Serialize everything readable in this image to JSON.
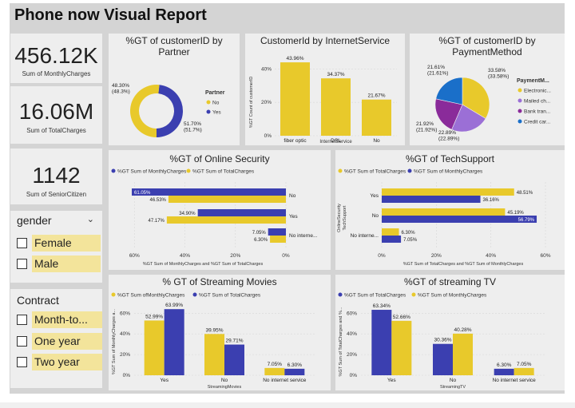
{
  "header": {
    "title": "Phone now Visual Report"
  },
  "colors": {
    "yellow": "#e8c92b",
    "blue": "#3b3fb0",
    "cyan": "#1a6fc9",
    "purple": "#8a2b9a",
    "lavender": "#9b6fd6"
  },
  "kpis": [
    {
      "value": "456.12K",
      "label": "Sum of MonthlyCharges"
    },
    {
      "value": "16.06M",
      "label": "Sum of TotalCharges"
    },
    {
      "value": "1142",
      "label": "Sum of SeniorCitizen"
    }
  ],
  "slicers": {
    "gender": {
      "title": "gender",
      "options": [
        "Female",
        "Male"
      ]
    },
    "contract": {
      "title": "Contract",
      "options": [
        "Month-to...",
        "One year",
        "Two year"
      ]
    }
  },
  "chart_data": [
    {
      "id": "partner",
      "type": "pie",
      "title": "%GT of customerID by Partner",
      "legend_title": "Partner",
      "legend": [
        "No",
        "Yes"
      ],
      "slices": [
        {
          "name": "No",
          "value": 51.7,
          "label": "51.70%\n(51.7%)",
          "color": "#e8c92b"
        },
        {
          "name": "Yes",
          "value": 48.3,
          "label": "48.30%\n(48.3%)",
          "color": "#3b3fb0"
        }
      ]
    },
    {
      "id": "internet",
      "type": "bar",
      "title": "CustomerId by InternetService",
      "categories": [
        "fiber optic",
        "DSL",
        "No"
      ],
      "values": [
        43.96,
        34.37,
        21.67
      ],
      "value_labels": [
        "43.96%",
        "34.37%",
        "21.67%"
      ],
      "xlabel": "InternetService",
      "ylabel": "%GT Count of customerID",
      "yticks": [
        "0%",
        "20%",
        "40%"
      ],
      "ylim": [
        0,
        44
      ]
    },
    {
      "id": "payment",
      "type": "pie",
      "title": "%GT of customerID by PaymentMethod",
      "legend_title": "PaymentM...",
      "legend": [
        "Electronic...",
        "Mailed ch...",
        "Bank tran...",
        "Credit car..."
      ],
      "slices": [
        {
          "name": "Electronic...",
          "value": 33.58,
          "label": "33.58%\n(33.58%)",
          "color": "#e8c92b"
        },
        {
          "name": "Mailed ch...",
          "value": 22.89,
          "label": "22.89%\n(22.89%)",
          "color": "#9b6fd6"
        },
        {
          "name": "Bank tran...",
          "value": 21.92,
          "label": "21.92%\n(21.92%)",
          "color": "#8a2b9a"
        },
        {
          "name": "Credit car...",
          "value": 21.61,
          "label": "21.61%\n(21.61%)",
          "color": "#1a6fc9"
        }
      ]
    },
    {
      "id": "security",
      "type": "bar",
      "orientation": "horizontal-reversed",
      "title": "%GT of Online Security",
      "legend": [
        "%GT Sum of MonthlyCharges",
        "%GT Sum of TotalCharges"
      ],
      "categories": [
        "No",
        "Yes",
        "No interne..."
      ],
      "series": [
        {
          "name": "%GT Sum of MonthlyCharges",
          "values": [
            61.05,
            34.9,
            7.05
          ],
          "labels": [
            "61.05%",
            "34.90%",
            "7.05%"
          ]
        },
        {
          "name": "%GT Sum of TotalCharges",
          "values": [
            46.53,
            47.17,
            6.3
          ],
          "labels": [
            "46.53%",
            "47.17%",
            "6.30%"
          ]
        }
      ],
      "xticks": [
        "60%",
        "40%",
        "20%",
        "0%"
      ],
      "xlabel": "%GT Sum of MonthlyCharges and %GT Sum of TotalCharges",
      "xlim": [
        0,
        62
      ]
    },
    {
      "id": "techsupport",
      "type": "bar",
      "orientation": "horizontal",
      "title": "%GT of TechSupport",
      "legend": [
        "%GT Sum of TotalCharges",
        "%GT Sum of MonthlyCharges"
      ],
      "categories": [
        "Yes",
        "No",
        "No interne..."
      ],
      "series": [
        {
          "name": "%GT Sum of TotalCharges",
          "values": [
            48.51,
            45.19,
            6.3
          ],
          "labels": [
            "48.51%",
            "45.19%",
            "6.30%"
          ]
        },
        {
          "name": "%GT Sum of MonthlyCharges",
          "values": [
            36.16,
            56.79,
            7.05
          ],
          "labels": [
            "36.16%",
            "56.79%",
            "7.05%"
          ]
        }
      ],
      "xticks": [
        "0%",
        "20%",
        "40%",
        "60%"
      ],
      "xlabel": "%GT Sum of TotalCharges and %GT Sum of MonthlyCharges",
      "ylabel": "TechSupport",
      "ylabel2": "OnlineSecurity",
      "xlim": [
        0,
        60
      ]
    },
    {
      "id": "movies",
      "type": "bar",
      "title": "% GT of Streaming Movies",
      "legend": [
        "%GT Sum ofMonthlyCharges",
        "%GT Sum of TotalCharges"
      ],
      "categories": [
        "Yes",
        "No",
        "No internet service"
      ],
      "series": [
        {
          "name": "%GT Sum ofMonthlyCharges",
          "values": [
            52.99,
            39.95,
            7.05
          ],
          "labels": [
            "52.99%",
            "39.95%",
            "7.05%"
          ]
        },
        {
          "name": "%GT Sum of TotalCharges",
          "values": [
            63.99,
            29.71,
            6.3
          ],
          "labels": [
            "63.99%",
            "29.71%",
            "6.30%"
          ]
        }
      ],
      "yticks": [
        "0%",
        "20%",
        "40%",
        "60%"
      ],
      "xlabel": "StreamingMovies",
      "ylabel": "%GT Sum of MonthlyCharges a...",
      "ylim": [
        0,
        68
      ]
    },
    {
      "id": "tv",
      "type": "bar",
      "title": "%GT of streaming TV",
      "legend": [
        "%GT Sum of TotalCharges",
        "%GT Sum of MonthlyCharges"
      ],
      "categories": [
        "Yes",
        "No",
        "No internet service"
      ],
      "series": [
        {
          "name": "%GT Sum of TotalCharges",
          "values": [
            63.34,
            30.36,
            6.3
          ],
          "labels": [
            "63.34%",
            "30.36%",
            "6.30%"
          ]
        },
        {
          "name": "%GT Sum of MonthlyCharges",
          "values": [
            52.66,
            40.28,
            7.05
          ],
          "labels": [
            "52.66%",
            "40.28%",
            "7.05%"
          ]
        }
      ],
      "yticks": [
        "0%",
        "20%",
        "40%",
        "60%"
      ],
      "xlabel": "StreamingTV",
      "ylabel": "%GT Sum of TotalCharges and %...",
      "ylim": [
        0,
        68
      ]
    }
  ]
}
